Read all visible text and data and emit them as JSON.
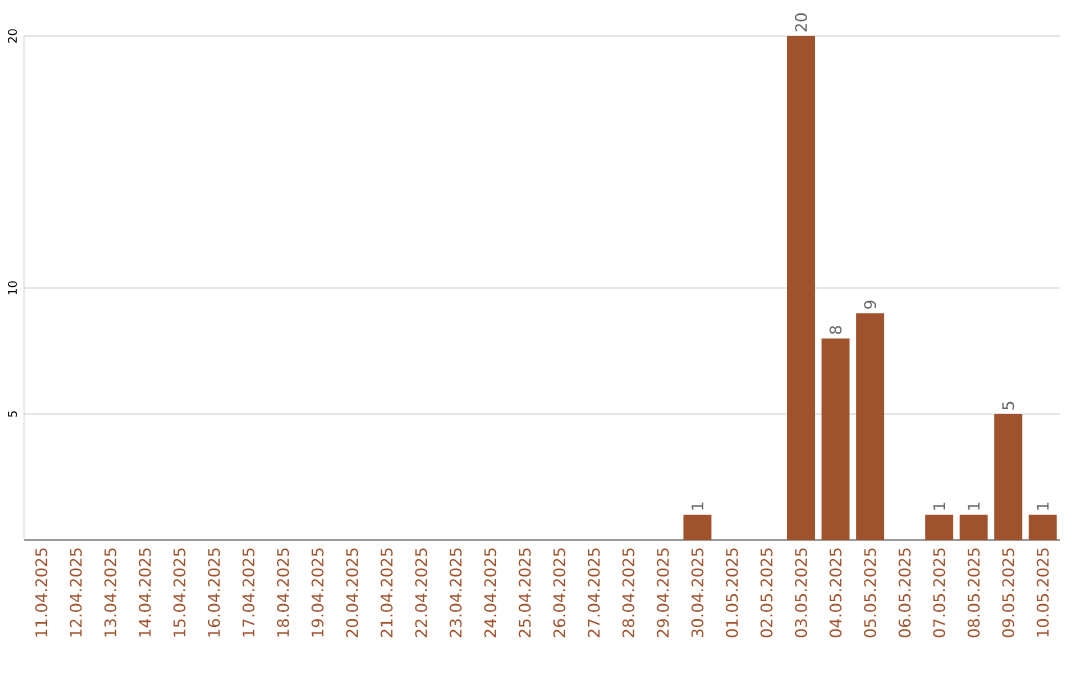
{
  "chart_data": {
    "type": "bar",
    "categories": [
      "11.04.2025",
      "12.04.2025",
      "13.04.2025",
      "14.04.2025",
      "15.04.2025",
      "16.04.2025",
      "17.04.2025",
      "18.04.2025",
      "19.04.2025",
      "20.04.2025",
      "21.04.2025",
      "22.04.2025",
      "23.04.2025",
      "24.04.2025",
      "25.04.2025",
      "26.04.2025",
      "27.04.2025",
      "28.04.2025",
      "29.04.2025",
      "30.04.2025",
      "01.05.2025",
      "02.05.2025",
      "03.05.2025",
      "04.05.2025",
      "05.05.2025",
      "06.05.2025",
      "07.05.2025",
      "08.05.2025",
      "09.05.2025",
      "10.05.2025"
    ],
    "values": [
      0,
      0,
      0,
      0,
      0,
      0,
      0,
      0,
      0,
      0,
      0,
      0,
      0,
      0,
      0,
      0,
      0,
      0,
      0,
      1,
      0,
      0,
      20,
      8,
      9,
      0,
      1,
      1,
      5,
      1
    ],
    "value_labels": [
      null,
      null,
      null,
      null,
      null,
      null,
      null,
      null,
      null,
      null,
      null,
      null,
      null,
      null,
      null,
      null,
      null,
      null,
      null,
      "1",
      null,
      null,
      "20",
      "8",
      "9",
      null,
      "1",
      "1",
      "5",
      "1"
    ],
    "color": "#a0522d",
    "ylim": [
      0,
      20
    ],
    "yticks": [
      5,
      10,
      20
    ],
    "grid": "y"
  }
}
